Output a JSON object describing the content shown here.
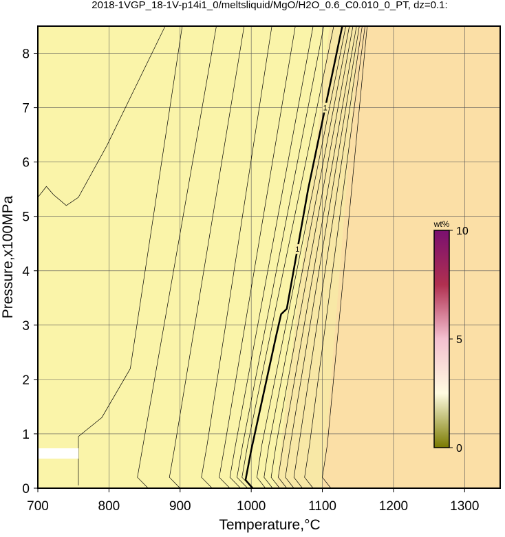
{
  "chart_data": {
    "type": "contour",
    "title": "2018-1VGP_18-1V-p14i1_0/meltsliquid/MgO/H2O_0.6_C0.010_0_PT, dz=0.1:",
    "x_label": "Temperature,°C",
    "y_label": "Pressure,x100MPa",
    "xlim": [
      700,
      1350
    ],
    "ylim": [
      0,
      8.5
    ],
    "xticks": [
      700,
      800,
      900,
      1000,
      1100,
      1200,
      1300
    ],
    "yticks": [
      0,
      1,
      2,
      3,
      4,
      5,
      6,
      7,
      8
    ],
    "grid": true,
    "line_color": "#000000",
    "shading": [
      {
        "color": "#faf4a9",
        "x": [
          700,
          1350,
          1350,
          700
        ],
        "y": [
          0,
          0,
          8.5,
          8.5
        ]
      },
      {
        "color": "#f8e8a6",
        "x": [
          1035,
          1112,
          1160,
          1110
        ],
        "y": [
          0,
          0,
          8.5,
          8.5
        ]
      },
      {
        "color": "#fbdfa6",
        "x": [
          1100,
          1350,
          1350,
          1152
        ],
        "y": [
          0,
          0,
          8.5,
          8.5
        ]
      }
    ],
    "contours": [
      {
        "level": 0.1,
        "x": [
          700,
          712,
          722,
          740,
          757,
          797,
          879
        ],
        "y": [
          5.35,
          5.55,
          5.4,
          5.2,
          5.35,
          6.3,
          8.5
        ]
      },
      {
        "level": 0.2,
        "x": [
          757,
          757,
          790,
          830,
          903
        ],
        "y": [
          0.05,
          0.95,
          1.3,
          2.2,
          8.5
        ]
      },
      {
        "level": 0.3,
        "x": [
          855,
          840,
          848,
          951
        ],
        "y": [
          0,
          0.2,
          0.8,
          8.5
        ]
      },
      {
        "level": 0.4,
        "x": [
          900,
          885,
          893,
          990
        ],
        "y": [
          0,
          0.2,
          0.8,
          8.5
        ]
      },
      {
        "level": 0.5,
        "x": [
          945,
          930,
          938,
          1029
        ],
        "y": [
          0,
          0.2,
          0.8,
          8.5
        ]
      },
      {
        "level": 0.6,
        "x": [
          970,
          955,
          963,
          1062
        ],
        "y": [
          0,
          0.2,
          0.8,
          8.5
        ]
      },
      {
        "level": 0.7,
        "x": [
          985,
          970,
          978,
          1087
        ],
        "y": [
          0,
          0.2,
          0.8,
          8.5
        ]
      },
      {
        "level": 0.8,
        "x": [
          995,
          980,
          988,
          1102
        ],
        "y": [
          0,
          0.2,
          0.8,
          8.5
        ]
      },
      {
        "level": 0.9,
        "x": [
          1002,
          987,
          995,
          1116
        ],
        "y": [
          0,
          0.2,
          0.8,
          8.5
        ]
      },
      {
        "level": 1,
        "x": [
          1002,
          992,
          1000,
          1035,
          1042,
          1050,
          1080,
          1128
        ],
        "y": [
          0,
          0.15,
          0.7,
          2.8,
          3.2,
          3.3,
          5.5,
          8.5
        ]
      },
      {
        "level": 1.1,
        "x": [
          1020,
          1008,
          1015,
          1133
        ],
        "y": [
          0,
          0.2,
          0.8,
          8.5
        ]
      },
      {
        "level": 1.2,
        "x": [
          1030,
          1018,
          1025,
          1138
        ],
        "y": [
          0,
          0.2,
          0.8,
          8.5
        ]
      },
      {
        "level": 1.3,
        "x": [
          1040,
          1028,
          1035,
          1143
        ],
        "y": [
          0,
          0.2,
          0.8,
          8.5
        ]
      },
      {
        "level": 1.4,
        "x": [
          1050,
          1038,
          1045,
          1148
        ],
        "y": [
          0,
          0.2,
          0.8,
          8.5
        ]
      },
      {
        "level": 1.5,
        "x": [
          1060,
          1048,
          1055,
          1152
        ],
        "y": [
          0,
          0.2,
          0.8,
          8.5
        ]
      },
      {
        "level": 1.6,
        "x": [
          1072,
          1060,
          1067,
          1156
        ],
        "y": [
          0,
          0.2,
          0.8,
          8.5
        ]
      },
      {
        "level": 1.7,
        "x": [
          1087,
          1075,
          1082,
          1160
        ],
        "y": [
          0,
          0.2,
          0.8,
          8.5
        ]
      },
      {
        "level": 1.8,
        "x": [
          1112,
          1100,
          1107,
          1163
        ],
        "y": [
          0,
          0.2,
          0.8,
          8.5
        ]
      }
    ],
    "labeled_level": 1,
    "colorbar": {
      "label": "wt%",
      "lim": [
        0,
        10
      ],
      "ticks": [
        0,
        5,
        10
      ],
      "colors": [
        "#7a7a00",
        "#fffbe0",
        "#f4c0d0",
        "#b03050",
        "#7a1070"
      ]
    }
  }
}
